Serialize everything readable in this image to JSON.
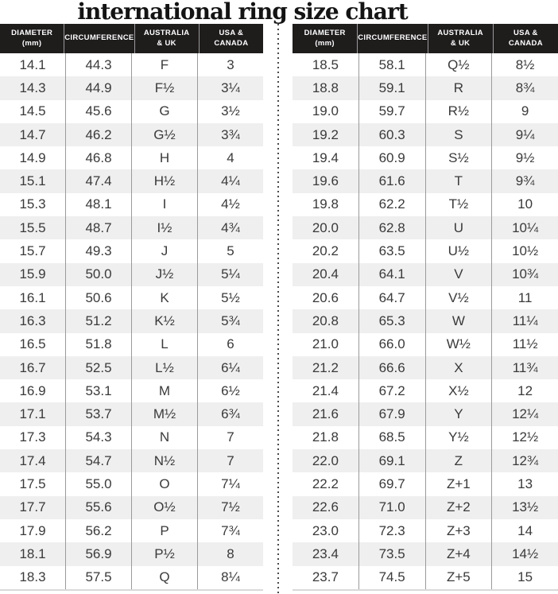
{
  "page": {
    "title": "international ring size chart"
  },
  "colors": {
    "header_bg": "#1f1c1c",
    "header_text": "#ffffff",
    "body_text": "#3a3a3a",
    "row_alt_bg": "#efefef",
    "column_line": "#9a9a9a",
    "divider_dots": "#4a4a4a"
  },
  "chart_data": [
    {
      "type": "table",
      "columns": [
        "DIAMETER\n(mm)",
        "CIRCUMFERENCE",
        "AUSTRALIA\n& UK",
        "USA &\nCANADA"
      ],
      "rows": [
        [
          "14.1",
          "44.3",
          "F",
          "3"
        ],
        [
          "14.3",
          "44.9",
          "F½",
          "3¼"
        ],
        [
          "14.5",
          "45.6",
          "G",
          "3½"
        ],
        [
          "14.7",
          "46.2",
          "G½",
          "3¾"
        ],
        [
          "14.9",
          "46.8",
          "H",
          "4"
        ],
        [
          "15.1",
          "47.4",
          "H½",
          "4¼"
        ],
        [
          "15.3",
          "48.1",
          "I",
          "4½"
        ],
        [
          "15.5",
          "48.7",
          "I½",
          "4¾"
        ],
        [
          "15.7",
          "49.3",
          "J",
          "5"
        ],
        [
          "15.9",
          "50.0",
          "J½",
          "5¼"
        ],
        [
          "16.1",
          "50.6",
          "K",
          "5½"
        ],
        [
          "16.3",
          "51.2",
          "K½",
          "5¾"
        ],
        [
          "16.5",
          "51.8",
          "L",
          "6"
        ],
        [
          "16.7",
          "52.5",
          "L½",
          "6¼"
        ],
        [
          "16.9",
          "53.1",
          "M",
          "6½"
        ],
        [
          "17.1",
          "53.7",
          "M½",
          "6¾"
        ],
        [
          "17.3",
          "54.3",
          "N",
          "7"
        ],
        [
          "17.4",
          "54.7",
          "N½",
          "7"
        ],
        [
          "17.5",
          "55.0",
          "O",
          "7¼"
        ],
        [
          "17.7",
          "55.6",
          "O½",
          "7½"
        ],
        [
          "17.9",
          "56.2",
          "P",
          "7¾"
        ],
        [
          "18.1",
          "56.9",
          "P½",
          "8"
        ],
        [
          "18.3",
          "57.5",
          "Q",
          "8¼"
        ]
      ]
    },
    {
      "type": "table",
      "columns": [
        "DIAMETER\n(mm)",
        "CIRCUMFERENCE",
        "AUSTRALIA\n& UK",
        "USA &\nCANADA"
      ],
      "rows": [
        [
          "18.5",
          "58.1",
          "Q½",
          "8½"
        ],
        [
          "18.8",
          "59.1",
          "R",
          "8¾"
        ],
        [
          "19.0",
          "59.7",
          "R½",
          "9"
        ],
        [
          "19.2",
          "60.3",
          "S",
          "9¼"
        ],
        [
          "19.4",
          "60.9",
          "S½",
          "9½"
        ],
        [
          "19.6",
          "61.6",
          "T",
          "9¾"
        ],
        [
          "19.8",
          "62.2",
          "T½",
          "10"
        ],
        [
          "20.0",
          "62.8",
          "U",
          "10¼"
        ],
        [
          "20.2",
          "63.5",
          "U½",
          "10½"
        ],
        [
          "20.4",
          "64.1",
          "V",
          "10¾"
        ],
        [
          "20.6",
          "64.7",
          "V½",
          "11"
        ],
        [
          "20.8",
          "65.3",
          "W",
          "11¼"
        ],
        [
          "21.0",
          "66.0",
          "W½",
          "11½"
        ],
        [
          "21.2",
          "66.6",
          "X",
          "11¾"
        ],
        [
          "21.4",
          "67.2",
          "X½",
          "12"
        ],
        [
          "21.6",
          "67.9",
          "Y",
          "12¼"
        ],
        [
          "21.8",
          "68.5",
          "Y½",
          "12½"
        ],
        [
          "22.0",
          "69.1",
          "Z",
          "12¾"
        ],
        [
          "22.2",
          "69.7",
          "Z+1",
          "13"
        ],
        [
          "22.6",
          "71.0",
          "Z+2",
          "13½"
        ],
        [
          "23.0",
          "72.3",
          "Z+3",
          "14"
        ],
        [
          "23.4",
          "73.5",
          "Z+4",
          "14½"
        ],
        [
          "23.7",
          "74.5",
          "Z+5",
          "15"
        ]
      ]
    }
  ]
}
